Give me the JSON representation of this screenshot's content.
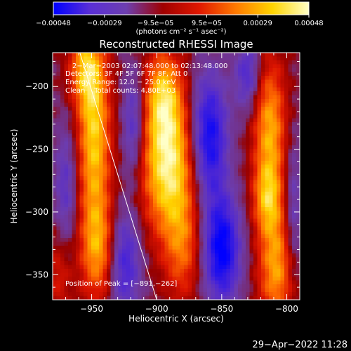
{
  "chart_data": {
    "type": "heatmap",
    "title": "Reconstructed RHESSI Image",
    "xlabel": "Heliocentric X (arcsec)",
    "ylabel": "Heliocentric Y (arcsec)",
    "xlim": [
      -980,
      -790
    ],
    "ylim": [
      -370,
      -173
    ],
    "xticks": [
      -950,
      -900,
      -850,
      -800
    ],
    "xtick_labels": [
      "−950",
      "−900",
      "−850",
      "−800"
    ],
    "yticks": [
      -200,
      -250,
      -300,
      -350
    ],
    "ytick_labels": [
      "−200",
      "−250",
      "−300",
      "−350"
    ],
    "colorbar": {
      "min": -0.00048,
      "max": 0.00048,
      "tick_labels": [
        "−0.00048",
        "−0.00029",
        "−9.5e−05",
        "9.5e−05",
        "0.00029",
        "0.00048"
      ],
      "unit_label": "(photons cm⁻² s⁻¹ asec⁻²)",
      "colors": [
        "#0000ff",
        "#5a2fd6",
        "#6d3fb0",
        "#a00000",
        "#e01800",
        "#ff7a00",
        "#ffd400",
        "#ffffc8"
      ]
    },
    "annotations": [
      "2−Mar−2003 02:07:48.000 to 02:13:48.000",
      "Detectors: 3F 4F 5F 6F 7F 8F, Att 0",
      "Energy Range: 12.0 − 25.0 keV",
      "Clean    Total counts: 4.80E+03",
      "Position of Peak = [−891,−262]"
    ],
    "peak": {
      "x": -891,
      "y": -262
    },
    "limb_line": [
      [
        -960,
        -170
      ],
      [
        -900,
        -370
      ]
    ],
    "sources": [
      {
        "x": -948,
        "y": -240,
        "sx": 9,
        "sy": 48,
        "amp": 0.0004
      },
      {
        "x": -945,
        "y": -330,
        "sx": 10,
        "sy": 30,
        "amp": 0.00032
      },
      {
        "x": -955,
        "y": -185,
        "sx": 9,
        "sy": 22,
        "amp": 0.0003
      },
      {
        "x": -891,
        "y": -262,
        "sx": 15,
        "sy": 40,
        "amp": 0.00048
      },
      {
        "x": -895,
        "y": -205,
        "sx": 10,
        "sy": 25,
        "amp": 0.0003
      },
      {
        "x": -880,
        "y": -330,
        "sx": 10,
        "sy": 30,
        "amp": 0.00022
      },
      {
        "x": -813,
        "y": -235,
        "sx": 9,
        "sy": 40,
        "amp": 0.00036
      },
      {
        "x": -808,
        "y": -345,
        "sx": 10,
        "sy": 32,
        "amp": 0.00034
      },
      {
        "x": -815,
        "y": -290,
        "sx": 8,
        "sy": 20,
        "amp": 0.00025
      },
      {
        "x": -975,
        "y": -350,
        "sx": 7,
        "sy": 25,
        "amp": 0.00015
      }
    ],
    "troughs": [
      {
        "x": -860,
        "y": -240,
        "sx": 10,
        "sy": 35,
        "amp": -0.00042
      },
      {
        "x": -850,
        "y": -330,
        "sx": 10,
        "sy": 30,
        "amp": -0.00045
      },
      {
        "x": -918,
        "y": -230,
        "sx": 6,
        "sy": 30,
        "amp": -0.00025
      },
      {
        "x": -925,
        "y": -340,
        "sx": 9,
        "sy": 30,
        "amp": -0.0003
      },
      {
        "x": -970,
        "y": -280,
        "sx": 6,
        "sy": 35,
        "amp": -0.0002
      },
      {
        "x": -830,
        "y": -190,
        "sx": 7,
        "sy": 20,
        "amp": -0.00025
      },
      {
        "x": -795,
        "y": -300,
        "sx": 5,
        "sy": 40,
        "amp": -0.00018
      }
    ]
  },
  "footer": {
    "timestamp": "29−Apr−2022 11:28"
  }
}
